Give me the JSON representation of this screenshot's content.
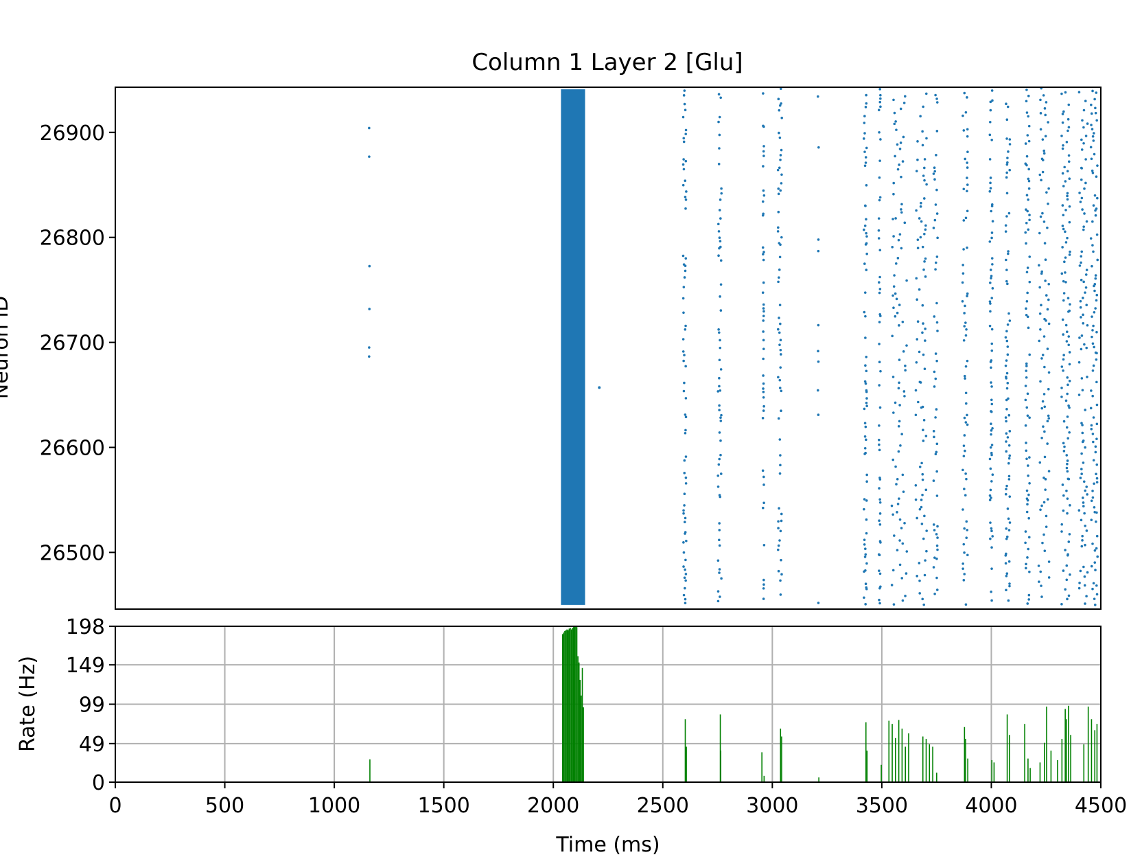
{
  "chart_data": [
    {
      "type": "scatter",
      "title": "Column 1 Layer 2 [Glu]",
      "xlabel": "",
      "ylabel": "Neuron ID",
      "xlim": [
        0,
        4500
      ],
      "ylim": [
        26446,
        26943
      ],
      "yticks": [
        "26500",
        "26600",
        "26700",
        "26800",
        "26900"
      ],
      "grid": false,
      "color": "#1f77b4",
      "description": "",
      "bursts": [
        {
          "t": 1160,
          "width": 4,
          "density": 0.06
        },
        {
          "t": 2090,
          "width": 110,
          "density": 1.0
        },
        {
          "t": 2600,
          "width": 14,
          "density": 0.55
        },
        {
          "t": 2760,
          "width": 16,
          "density": 0.55
        },
        {
          "t": 2960,
          "width": 6,
          "density": 0.3
        },
        {
          "t": 3035,
          "width": 18,
          "density": 0.55
        },
        {
          "t": 3210,
          "width": 4,
          "density": 0.06
        },
        {
          "t": 3425,
          "width": 14,
          "density": 0.6
        },
        {
          "t": 3490,
          "width": 8,
          "density": 0.35
        },
        {
          "t": 3580,
          "width": 70,
          "density": 0.75
        },
        {
          "t": 3680,
          "width": 50,
          "density": 0.7
        },
        {
          "t": 3745,
          "width": 20,
          "density": 0.4
        },
        {
          "t": 3880,
          "width": 24,
          "density": 0.6
        },
        {
          "t": 4000,
          "width": 14,
          "density": 0.55
        },
        {
          "t": 4075,
          "width": 20,
          "density": 0.6
        },
        {
          "t": 4165,
          "width": 20,
          "density": 0.6
        },
        {
          "t": 4240,
          "width": 50,
          "density": 0.65
        },
        {
          "t": 4340,
          "width": 38,
          "density": 0.9
        },
        {
          "t": 4420,
          "width": 40,
          "density": 0.7
        },
        {
          "t": 4470,
          "width": 30,
          "density": 0.75
        }
      ]
    },
    {
      "type": "bar",
      "xlabel": "Time (ms)",
      "ylabel": "Rate (Hz)",
      "xlim": [
        0,
        4500
      ],
      "ylim": [
        0,
        198
      ],
      "xticks": [
        "0",
        "500",
        "1000",
        "1500",
        "2000",
        "2500",
        "3000",
        "3500",
        "4000",
        "4500"
      ],
      "yticks": [
        "0",
        "49",
        "99",
        "149",
        "198"
      ],
      "grid": true,
      "color": "#008000",
      "x": [
        1160,
        2040,
        2045,
        2050,
        2055,
        2060,
        2065,
        2070,
        2075,
        2080,
        2085,
        2090,
        2095,
        2100,
        2105,
        2110,
        2115,
        2120,
        2125,
        2130,
        2135,
        2600,
        2605,
        2760,
        2762,
        2950,
        2960,
        3035,
        3040,
        3210,
        3425,
        3430,
        3495,
        3530,
        3545,
        3560,
        3575,
        3590,
        3605,
        3620,
        3685,
        3700,
        3715,
        3730,
        3748,
        3875,
        3880,
        3890,
        4000,
        4010,
        4070,
        4080,
        4150,
        4165,
        4175,
        4220,
        4240,
        4250,
        4270,
        4300,
        4320,
        4335,
        4340,
        4350,
        4360,
        4420,
        4440,
        4455,
        4470,
        4480
      ],
      "values": [
        29,
        188,
        190,
        192,
        193,
        194,
        193,
        195,
        196,
        194,
        196,
        197,
        198,
        198,
        197,
        160,
        152,
        130,
        110,
        145,
        95,
        80,
        45,
        86,
        40,
        38,
        8,
        68,
        58,
        6,
        76,
        40,
        22,
        78,
        74,
        56,
        79,
        68,
        45,
        62,
        58,
        55,
        48,
        45,
        12,
        70,
        55,
        30,
        28,
        25,
        86,
        60,
        74,
        30,
        18,
        25,
        50,
        96,
        40,
        28,
        55,
        93,
        80,
        97,
        60,
        48,
        96,
        80,
        66,
        74
      ]
    }
  ]
}
